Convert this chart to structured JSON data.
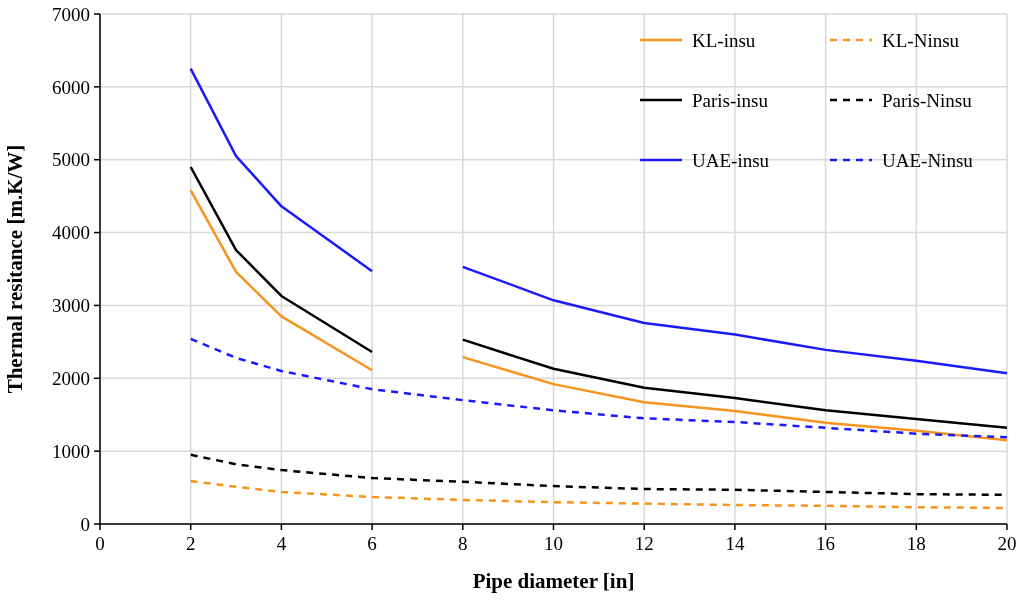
{
  "chart_data": {
    "type": "line",
    "xlabel": "Pipe diameter [in]",
    "ylabel": "Thermal resitance [m.K/W]",
    "xlim": [
      0,
      20
    ],
    "xticks": [
      0,
      2,
      4,
      6,
      8,
      10,
      12,
      14,
      16,
      18,
      20
    ],
    "ylim": [
      0,
      7000
    ],
    "yticks": [
      0,
      1000,
      2000,
      3000,
      4000,
      5000,
      6000,
      7000
    ],
    "grid": true,
    "legend": "top right",
    "marker": "none",
    "series": [
      {
        "name": "KL-insu",
        "color": "#f7941d",
        "line_style": "solid",
        "x": [
          2,
          3,
          4,
          6,
          7,
          8,
          10,
          12,
          14,
          16,
          18,
          20
        ],
        "values": [
          4580,
          3460,
          2850,
          2110,
          null,
          2290,
          1920,
          1670,
          1550,
          1390,
          1280,
          1150
        ]
      },
      {
        "name": "KL-Ninsu",
        "color": "#f7941d",
        "line_style": "dashed",
        "x": [
          2,
          3,
          4,
          6,
          8,
          10,
          12,
          14,
          16,
          18,
          20
        ],
        "values": [
          590,
          510,
          440,
          370,
          330,
          300,
          280,
          260,
          250,
          230,
          220
        ]
      },
      {
        "name": "Paris-insu",
        "color": "#000000",
        "line_style": "solid",
        "x": [
          2,
          3,
          4,
          6,
          7,
          8,
          10,
          12,
          14,
          16,
          18,
          20
        ],
        "values": [
          4900,
          3760,
          3130,
          2360,
          null,
          2530,
          2130,
          1870,
          1730,
          1560,
          1440,
          1320
        ]
      },
      {
        "name": "Paris-Ninsu",
        "color": "#000000",
        "line_style": "dashed",
        "x": [
          2,
          3,
          4,
          6,
          8,
          10,
          12,
          14,
          16,
          18,
          20
        ],
        "values": [
          950,
          820,
          740,
          630,
          580,
          520,
          480,
          470,
          440,
          410,
          400
        ]
      },
      {
        "name": "UAE-insu",
        "color": "#1a1aff",
        "line_style": "solid",
        "x": [
          2,
          3,
          4,
          6,
          7,
          8,
          10,
          12,
          14,
          16,
          18,
          20
        ],
        "values": [
          6250,
          5050,
          4360,
          3470,
          null,
          3530,
          3070,
          2760,
          2600,
          2390,
          2240,
          2070
        ]
      },
      {
        "name": "UAE-Ninsu",
        "color": "#1a1aff",
        "line_style": "dashed",
        "x": [
          2,
          3,
          4,
          6,
          8,
          10,
          12,
          14,
          16,
          18,
          20
        ],
        "values": [
          2540,
          2280,
          2100,
          1850,
          1700,
          1560,
          1450,
          1400,
          1320,
          1240,
          1190
        ]
      }
    ]
  }
}
